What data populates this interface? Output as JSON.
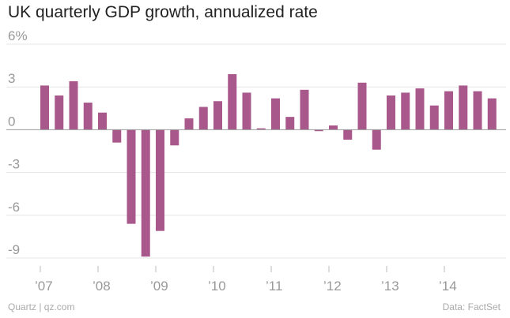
{
  "chart_data": {
    "type": "bar",
    "title": "UK quarterly GDP growth, annualized rate",
    "xlabel": "",
    "ylabel": "",
    "ylim": [
      -9,
      6
    ],
    "yticks": [
      6,
      3,
      0,
      -3,
      -6,
      -9
    ],
    "ytick_labels": [
      "6%",
      "3",
      "0",
      "-3",
      "-6",
      "-9"
    ],
    "year_labels": [
      "’07",
      "’08",
      "’09",
      "’10",
      "’11",
      "’12",
      "’13",
      "’14"
    ],
    "categories": [
      "2007 Q1",
      "2007 Q2",
      "2007 Q3",
      "2007 Q4",
      "2008 Q1",
      "2008 Q2",
      "2008 Q3",
      "2008 Q4",
      "2009 Q1",
      "2009 Q2",
      "2009 Q3",
      "2009 Q4",
      "2010 Q1",
      "2010 Q2",
      "2010 Q3",
      "2010 Q4",
      "2011 Q1",
      "2011 Q2",
      "2011 Q3",
      "2011 Q4",
      "2012 Q1",
      "2012 Q2",
      "2012 Q3",
      "2012 Q4",
      "2013 Q1",
      "2013 Q2",
      "2013 Q3",
      "2013 Q4",
      "2014 Q1",
      "2014 Q2",
      "2014 Q3",
      "2014 Q4"
    ],
    "values": [
      3.1,
      2.4,
      3.4,
      1.9,
      1.2,
      -0.9,
      -6.6,
      -8.9,
      -7.1,
      -1.1,
      0.8,
      1.6,
      2.0,
      3.9,
      2.6,
      0.1,
      2.2,
      0.9,
      2.8,
      -0.1,
      0.3,
      -0.7,
      3.3,
      -1.4,
      2.4,
      2.6,
      2.9,
      1.7,
      2.7,
      3.1,
      2.7,
      2.2
    ],
    "bar_color": "#a8588b"
  },
  "footer": {
    "source_left": "Quartz | qz.com",
    "source_right": "Data: FactSet"
  }
}
